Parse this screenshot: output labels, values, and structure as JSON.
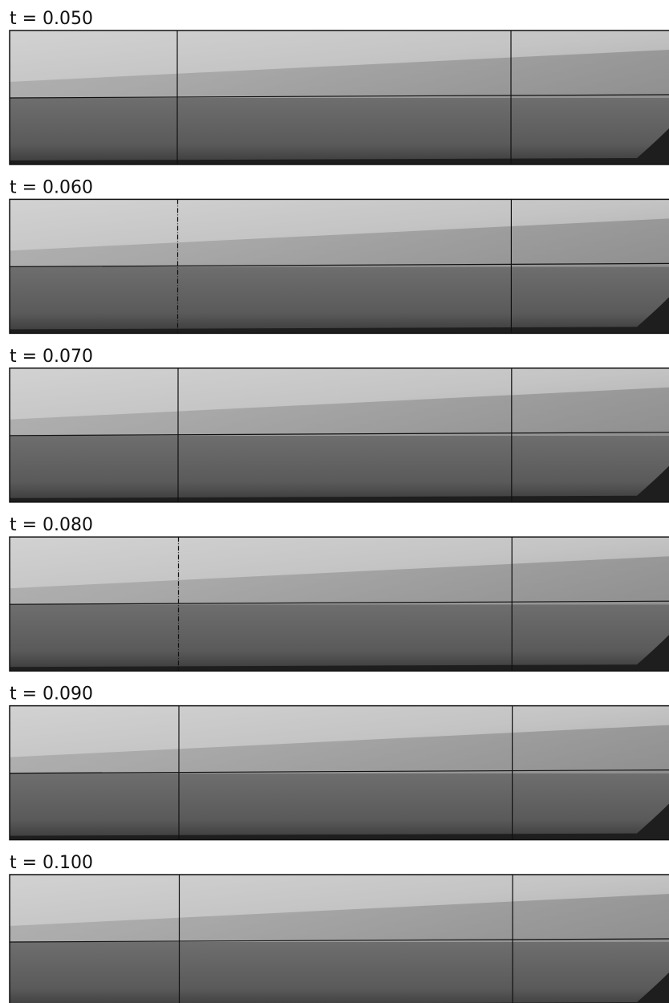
{
  "panels": [
    {
      "label": "t = 0.050"
    },
    {
      "label": "t = 0.060"
    },
    {
      "label": "t = 0.070"
    },
    {
      "label": "t = 0.080"
    },
    {
      "label": "t = 0.090"
    },
    {
      "label": "t = 0.100"
    }
  ]
}
